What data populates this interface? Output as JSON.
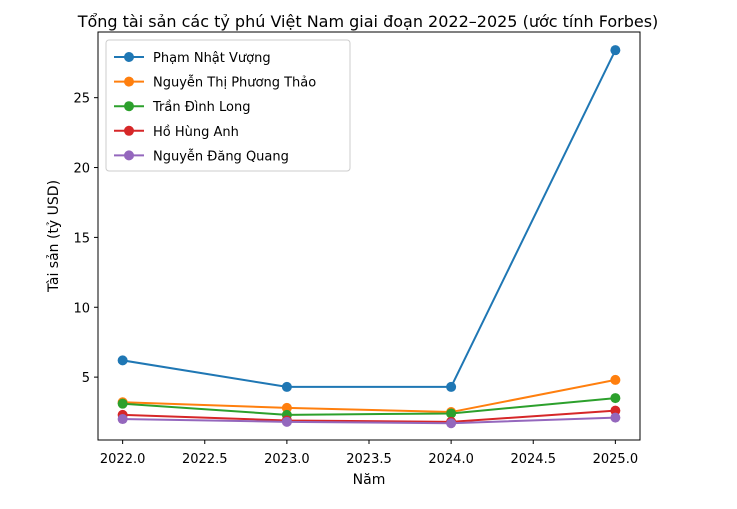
{
  "chart_data": {
    "type": "line",
    "title": "Tổng tài sản các tỷ phú Việt Nam giai đoạn 2022–2025 (ước tính Forbes)",
    "xlabel": "Năm",
    "ylabel": "Tài sản (tỷ USD)",
    "x": [
      2022,
      2023,
      2024,
      2025
    ],
    "xlim": [
      2021.85,
      2025.15
    ],
    "ylim": [
      0.5,
      29.7
    ],
    "xticks": [
      2022.0,
      2022.5,
      2023.0,
      2023.5,
      2024.0,
      2024.5,
      2025.0
    ],
    "xtick_labels": [
      "2022.0",
      "2022.5",
      "2023.0",
      "2023.5",
      "2024.0",
      "2024.5",
      "2025.0"
    ],
    "yticks": [
      5,
      10,
      15,
      20,
      25
    ],
    "ytick_labels": [
      "5",
      "10",
      "15",
      "20",
      "25"
    ],
    "grid": false,
    "legend_position": "top-left",
    "series": [
      {
        "name": "Phạm Nhật Vượng",
        "color": "#1f77b4",
        "values": [
          6.2,
          4.3,
          4.3,
          28.4
        ]
      },
      {
        "name": "Nguyễn Thị Phương Thảo",
        "color": "#ff7f0e",
        "values": [
          3.2,
          2.8,
          2.5,
          4.8
        ]
      },
      {
        "name": "Trần Đình Long",
        "color": "#2ca02c",
        "values": [
          3.1,
          2.3,
          2.4,
          3.5
        ]
      },
      {
        "name": "Hồ Hùng Anh",
        "color": "#d62728",
        "values": [
          2.3,
          1.9,
          1.8,
          2.6
        ]
      },
      {
        "name": "Nguyễn Đăng Quang",
        "color": "#9467bd",
        "values": [
          2.0,
          1.8,
          1.7,
          2.1
        ]
      }
    ]
  }
}
